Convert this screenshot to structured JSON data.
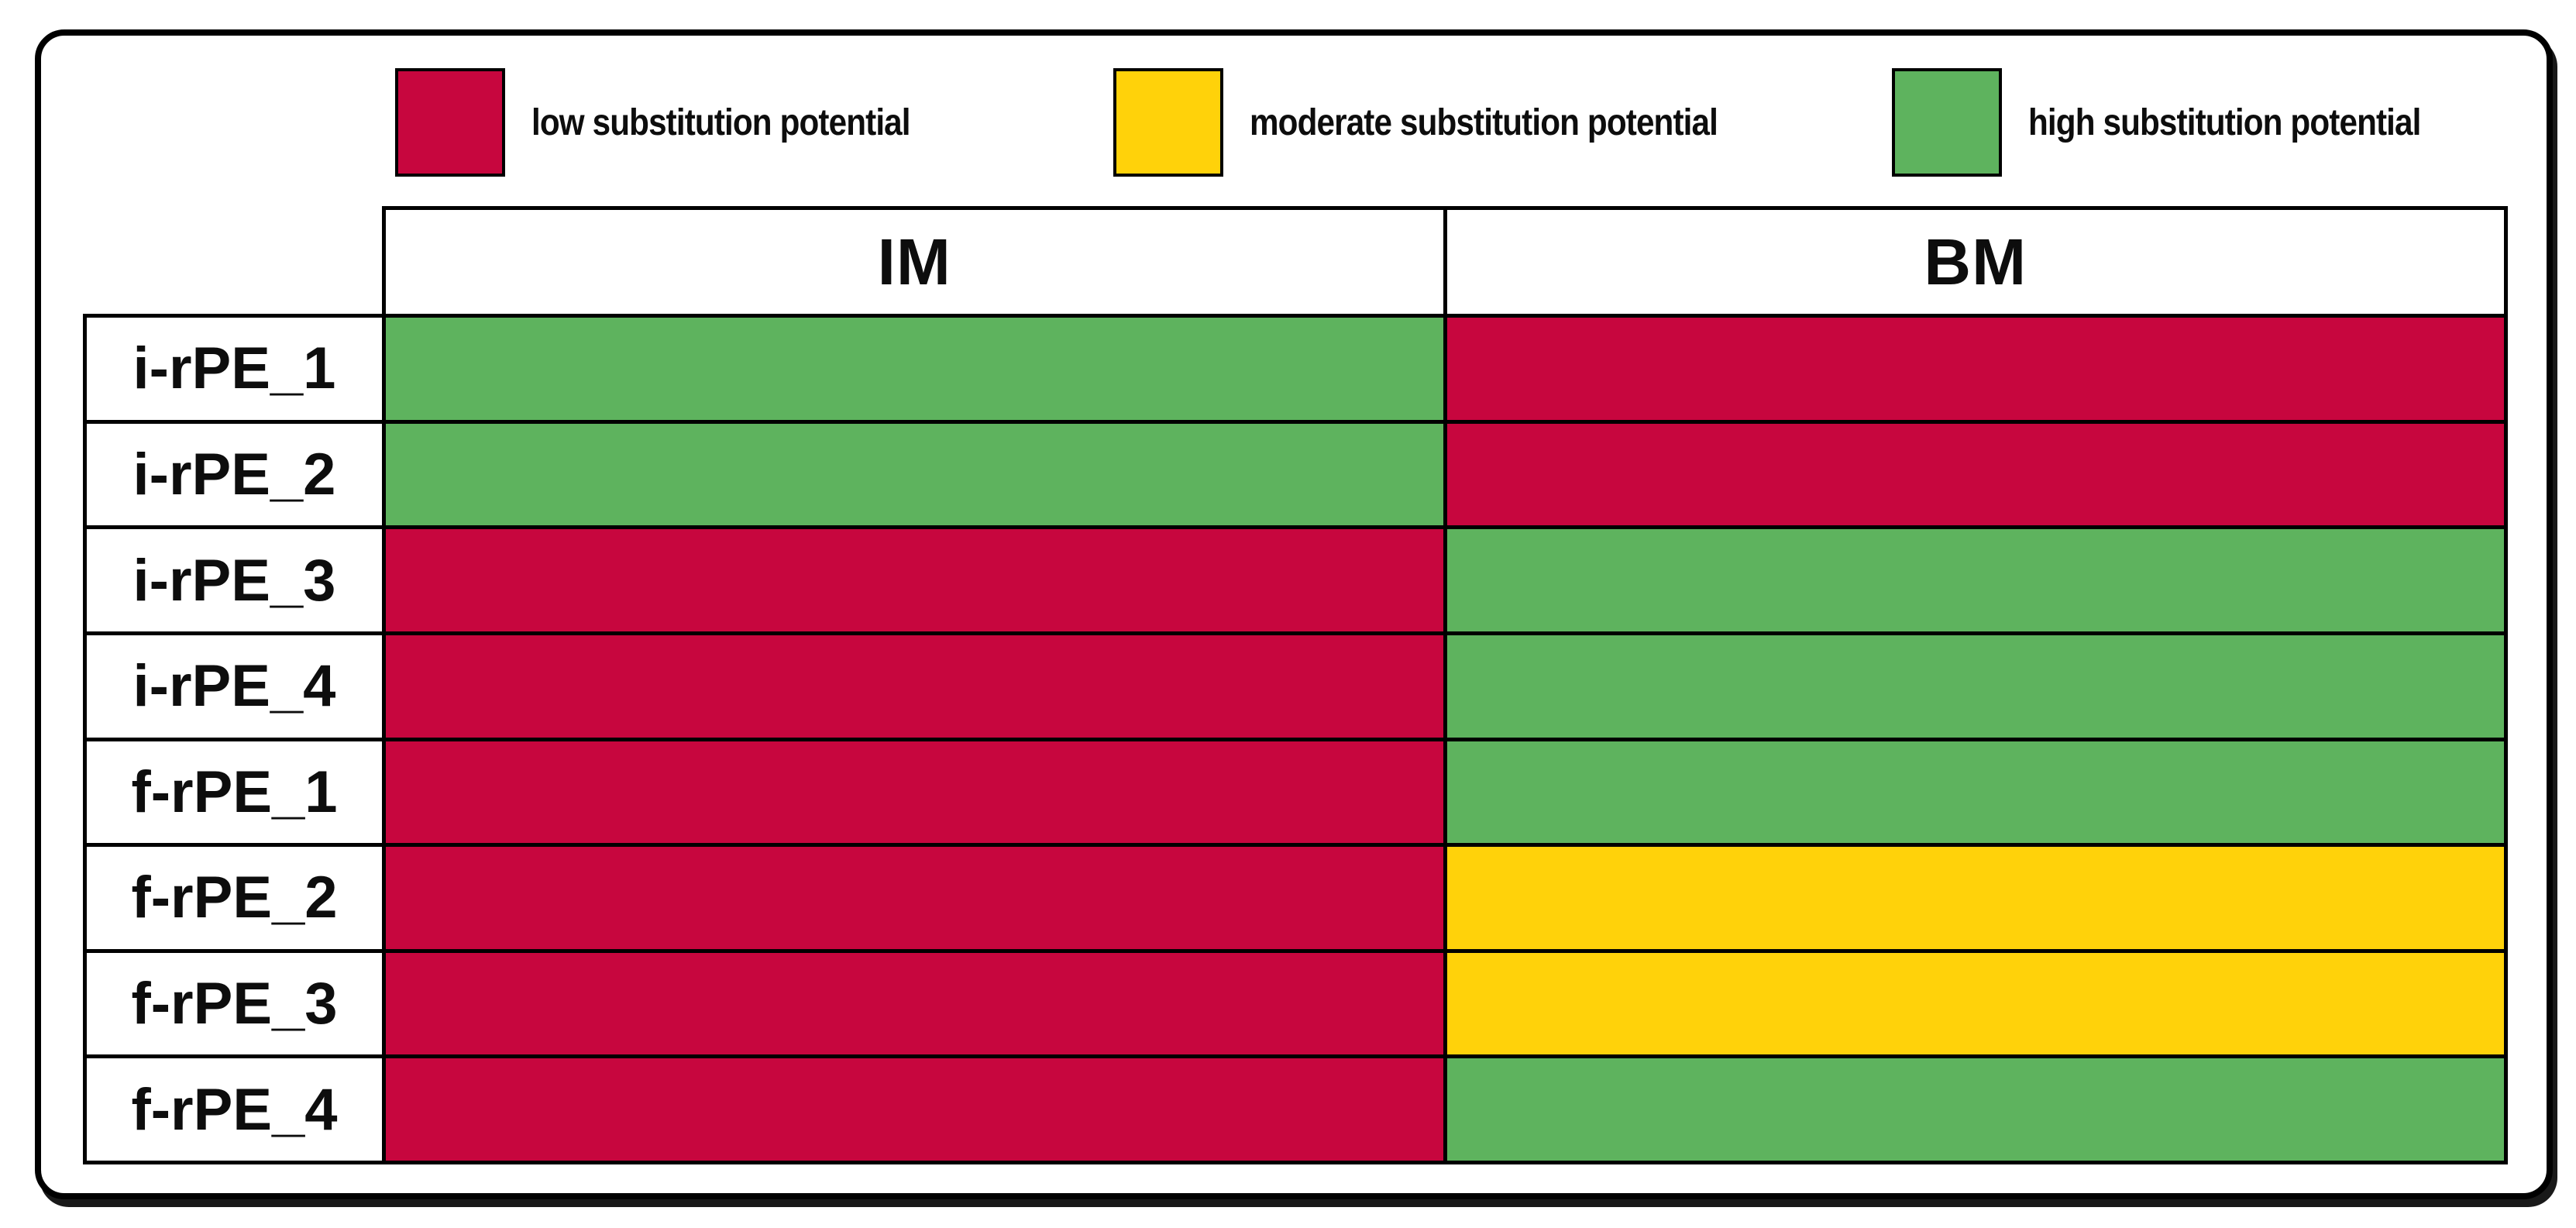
{
  "legend": {
    "items": [
      {
        "name": "low",
        "label": "low substitution potential",
        "color": "#C7063E"
      },
      {
        "name": "moderate",
        "label": "moderate substitution potential",
        "color": "#FFD20A"
      },
      {
        "name": "high",
        "label": "high substitution potential",
        "color": "#5EB35E"
      }
    ]
  },
  "chart_data": {
    "type": "heatmap",
    "title": "",
    "columns": [
      "IM",
      "BM"
    ],
    "rows": [
      "i-rPE_1",
      "i-rPE_2",
      "i-rPE_3",
      "i-rPE_4",
      "f-rPE_1",
      "f-rPE_2",
      "f-rPE_3",
      "f-rPE_4"
    ],
    "values": [
      [
        "high",
        "low"
      ],
      [
        "high",
        "low"
      ],
      [
        "low",
        "high"
      ],
      [
        "low",
        "high"
      ],
      [
        "low",
        "high"
      ],
      [
        "low",
        "moderate"
      ],
      [
        "low",
        "moderate"
      ],
      [
        "low",
        "high"
      ]
    ],
    "value_meanings": {
      "low": "low substitution potential",
      "moderate": "moderate substitution potential",
      "high": "high substitution potential"
    },
    "colors": {
      "low": "#C7063E",
      "moderate": "#FFD20A",
      "high": "#5EB35E"
    },
    "layout_hints": {
      "legend_position": "top",
      "grid": "black cell borders",
      "row_label_column": "left, no header cell"
    }
  }
}
